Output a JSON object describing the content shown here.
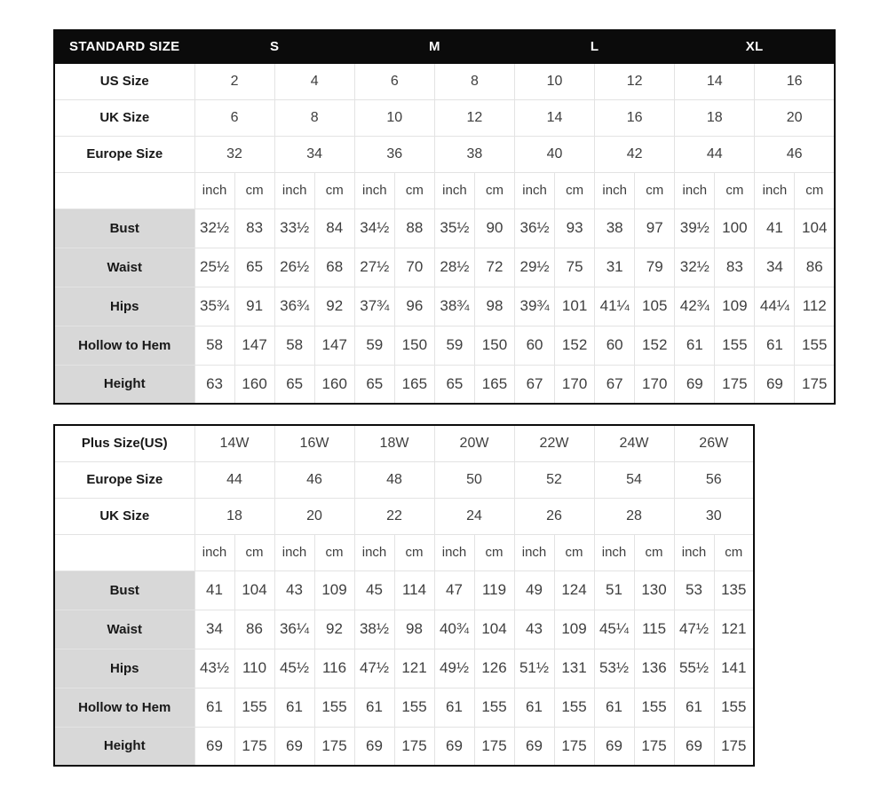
{
  "chart_data": [
    {
      "type": "table",
      "header": {
        "title": "STANDARD SIZE",
        "groups": [
          "S",
          "M",
          "L",
          "XL"
        ]
      },
      "size_rows": [
        {
          "label": "US Size",
          "values": [
            "2",
            "4",
            "6",
            "8",
            "10",
            "12",
            "14",
            "16"
          ]
        },
        {
          "label": "UK Size",
          "values": [
            "6",
            "8",
            "10",
            "12",
            "14",
            "16",
            "18",
            "20"
          ]
        },
        {
          "label": "Europe Size",
          "values": [
            "32",
            "34",
            "36",
            "38",
            "40",
            "42",
            "44",
            "46"
          ]
        }
      ],
      "unit_row": [
        "inch",
        "cm",
        "inch",
        "cm",
        "inch",
        "cm",
        "inch",
        "cm",
        "inch",
        "cm",
        "inch",
        "cm",
        "inch",
        "cm",
        "inch",
        "cm"
      ],
      "measure_rows": [
        {
          "label": "Bust",
          "values": [
            "32½",
            "83",
            "33½",
            "84",
            "34½",
            "88",
            "35½",
            "90",
            "36½",
            "93",
            "38",
            "97",
            "39½",
            "100",
            "41",
            "104"
          ]
        },
        {
          "label": "Waist",
          "values": [
            "25½",
            "65",
            "26½",
            "68",
            "27½",
            "70",
            "28½",
            "72",
            "29½",
            "75",
            "31",
            "79",
            "32½",
            "83",
            "34",
            "86"
          ]
        },
        {
          "label": "Hips",
          "values": [
            "35¾",
            "91",
            "36¾",
            "92",
            "37¾",
            "96",
            "38¾",
            "98",
            "39¾",
            "101",
            "41¼",
            "105",
            "42¾",
            "109",
            "44¼",
            "112"
          ]
        },
        {
          "label": "Hollow to Hem",
          "values": [
            "58",
            "147",
            "58",
            "147",
            "59",
            "150",
            "59",
            "150",
            "60",
            "152",
            "60",
            "152",
            "61",
            "155",
            "61",
            "155"
          ]
        },
        {
          "label": "Height",
          "values": [
            "63",
            "160",
            "65",
            "160",
            "65",
            "165",
            "65",
            "165",
            "67",
            "170",
            "67",
            "170",
            "69",
            "175",
            "69",
            "175"
          ]
        }
      ]
    },
    {
      "type": "table",
      "size_rows": [
        {
          "label": "Plus Size(US)",
          "values": [
            "14W",
            "16W",
            "18W",
            "20W",
            "22W",
            "24W",
            "26W"
          ]
        },
        {
          "label": "Europe Size",
          "values": [
            "44",
            "46",
            "48",
            "50",
            "52",
            "54",
            "56"
          ]
        },
        {
          "label": "UK Size",
          "values": [
            "18",
            "20",
            "22",
            "24",
            "26",
            "28",
            "30"
          ]
        }
      ],
      "unit_row": [
        "inch",
        "cm",
        "inch",
        "cm",
        "inch",
        "cm",
        "inch",
        "cm",
        "inch",
        "cm",
        "inch",
        "cm",
        "inch",
        "cm"
      ],
      "measure_rows": [
        {
          "label": "Bust",
          "values": [
            "41",
            "104",
            "43",
            "109",
            "45",
            "114",
            "47",
            "119",
            "49",
            "124",
            "51",
            "130",
            "53",
            "135"
          ]
        },
        {
          "label": "Waist",
          "values": [
            "34",
            "86",
            "36¼",
            "92",
            "38½",
            "98",
            "40¾",
            "104",
            "43",
            "109",
            "45¼",
            "115",
            "47½",
            "121"
          ]
        },
        {
          "label": "Hips",
          "values": [
            "43½",
            "110",
            "45½",
            "116",
            "47½",
            "121",
            "49½",
            "126",
            "51½",
            "131",
            "53½",
            "136",
            "55½",
            "141"
          ]
        },
        {
          "label": "Hollow to Hem",
          "values": [
            "61",
            "155",
            "61",
            "155",
            "61",
            "155",
            "61",
            "155",
            "61",
            "155",
            "61",
            "155",
            "61",
            "155"
          ]
        },
        {
          "label": "Height",
          "values": [
            "69",
            "175",
            "69",
            "175",
            "69",
            "175",
            "69",
            "175",
            "69",
            "175",
            "69",
            "175",
            "69",
            "175"
          ]
        }
      ]
    }
  ],
  "colors": {
    "header_bg": "#0b0b0b",
    "header_text": "#ffffff",
    "label_cell_bg": "#d8d8d8",
    "grid_border": "#e3e3e3",
    "outer_border": "#0b0b0b",
    "value_text": "#3f3f3f",
    "label_text": "#181818",
    "page_bg": "#ffffff"
  }
}
